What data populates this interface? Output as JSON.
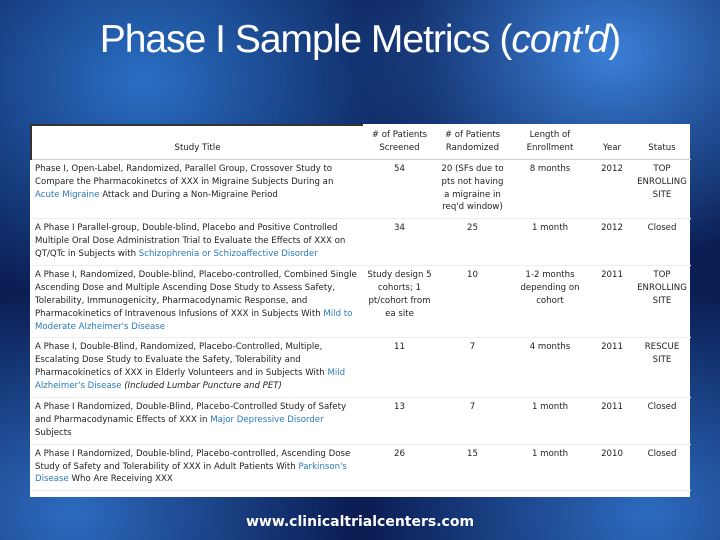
{
  "header": {
    "title": "Phase I Sample Metrics (",
    "title_italic": "cont'd",
    "title_end": ")"
  },
  "table": {
    "columns": [
      "Study Title",
      "# of Patients Screened",
      "# of Patients Randomized",
      "Length of Enrollment",
      "Year",
      "Status"
    ],
    "rows": [
      {
        "study": {
          "lead": "Phase I, Open-Label, Randomized, Parallel Group, Crossover Study to Compare the Pharmacokinetcs of XXX in Migraine Subjects During an",
          "disease": "Acute Migraine",
          "tail": "Attack and During a Non-Migraine Period"
        },
        "screened": "54",
        "randomized": "20 (SFs due to pts not having a migraine in req'd window)",
        "length": "8 months",
        "year": "2012",
        "status": "TOP ENROLLING SITE"
      },
      {
        "study": {
          "lead": "A Phase I Parallel-group, Double-blind, Placebo and Positive Controlled Multiple Oral Dose Administration Trial to Evaluate the Effects of XXX on QT/QTc in Subjects with",
          "disease": "Schizophrenia or Schizoaffective Disorder"
        },
        "screened": "34",
        "randomized": "25",
        "length": "1 month",
        "year": "2012",
        "status": "Closed"
      },
      {
        "study": {
          "lead": "A Phase I, Randomized, Double-blind, Placebo-controlled, Combined Single Ascending Dose and Multiple Ascending Dose Study to Assess Safety, Tolerability, Immunogenicity, Pharmacodynamic Response, and Pharmacokinetics of Intravenous Infusions of XXX in Subjects With",
          "disease": "Mild to Moderate Alzheimer's Disease"
        },
        "screened": "Study design 5 cohorts; 1 pt/cohort from ea site",
        "randomized": "10",
        "length": "1-2 months depending on cohort",
        "year": "2011",
        "status": "TOP ENROLLING SITE"
      },
      {
        "study": {
          "lead": "A Phase I, Double-Blind, Randomized, Placebo-Controlled, Multiple, Escalating Dose Study to Evaluate the Safety, Tolerability and Pharmacokinetics of XXX in Elderly Volunteers and in Subjects With",
          "disease": "Mild Alzheimer's Disease",
          "note": "(Included Lumbar Puncture and PET)"
        },
        "screened": "11",
        "randomized": "7",
        "length": "4 months",
        "year": "2011",
        "status": "RESCUE SITE"
      },
      {
        "study": {
          "lead": "A Phase I Randomized, Double-Blind, Placebo-Controlled Study of Safety and Pharmacodynamic Effects of XXX in",
          "disease": "Major Depressive Disorder",
          "tail": "Subjects"
        },
        "screened": "13",
        "randomized": "7",
        "length": "1 month",
        "year": "2011",
        "status": "Closed"
      },
      {
        "study": {
          "lead": "A Phase I Randomized, Double-blind, Placebo-controlled, Ascending Dose Study of Safety and Tolerability of XXX in Adult Patients With",
          "disease": "Parkinson's Disease",
          "tail": "Who Are Receiving XXX"
        },
        "screened": "26",
        "randomized": "15",
        "length": "1 month",
        "year": "2010",
        "status": "Closed"
      }
    ]
  },
  "footer": {
    "url": "www.clinicaltrialcenters.com"
  }
}
